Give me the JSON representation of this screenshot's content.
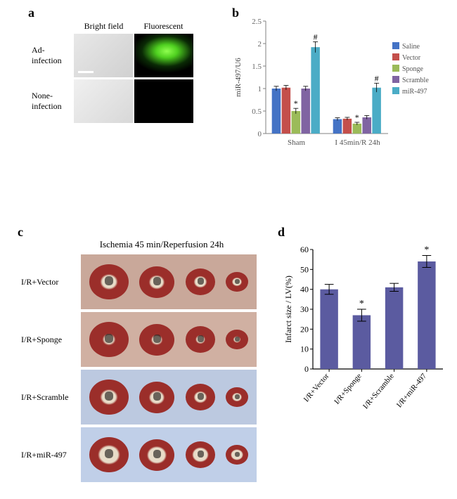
{
  "panelA": {
    "label": "a",
    "col1": "Bright field",
    "col2": "Fluorescent",
    "row1": "Ad-\ninfection",
    "row2": "None-\ninfection"
  },
  "panelB": {
    "label": "b",
    "ylabel": "miR-497/U6",
    "ylim": [
      0,
      2.5
    ],
    "yticks": [
      0,
      0.5,
      1.0,
      1.5,
      2.0,
      2.5
    ],
    "groups": [
      "Sham",
      "I 45min/R 24h"
    ],
    "series": [
      {
        "name": "Saline",
        "color": "#4473c5",
        "values": [
          1.0,
          0.32
        ],
        "err": [
          0.05,
          0.03
        ],
        "sig": [
          "",
          ""
        ]
      },
      {
        "name": "Vector",
        "color": "#c44f4b",
        "values": [
          1.02,
          0.33
        ],
        "err": [
          0.05,
          0.03
        ],
        "sig": [
          "",
          ""
        ]
      },
      {
        "name": "Sponge",
        "color": "#9bbb59",
        "values": [
          0.5,
          0.22
        ],
        "err": [
          0.06,
          0.03
        ],
        "sig": [
          "*",
          "*"
        ]
      },
      {
        "name": "Scramble",
        "color": "#8064a2",
        "values": [
          1.0,
          0.36
        ],
        "err": [
          0.05,
          0.04
        ],
        "sig": [
          "",
          ""
        ]
      },
      {
        "name": "miR-497",
        "color": "#4bacc6",
        "values": [
          1.92,
          1.02
        ],
        "err": [
          0.12,
          0.1
        ],
        "sig": [
          "#",
          "#"
        ]
      }
    ],
    "axis_color": "#808080",
    "font_size": 11
  },
  "panelC": {
    "label": "c",
    "title": "Ischemia 45 min/Reperfusion 24h",
    "rows": [
      {
        "label": "I/R+Vector",
        "bg": "#c9a89a",
        "infarct": 0.4
      },
      {
        "label": "I/R+Sponge",
        "bg": "#d0b0a2",
        "infarct": 0.27
      },
      {
        "label": "I/R+Scramble",
        "bg": "#bcc9e0",
        "infarct": 0.4
      },
      {
        "label": "I/R+miR-497",
        "bg": "#c0cfe8",
        "infarct": 0.54
      }
    ],
    "heart_sizes": [
      56,
      50,
      42,
      32
    ],
    "red": "#9b2e2a",
    "pale": "#e8dcc8"
  },
  "panelD": {
    "label": "d",
    "ylabel": "Infarct size / LV(%)",
    "ylim": [
      0,
      60
    ],
    "yticks": [
      0,
      10,
      20,
      30,
      40,
      50,
      60
    ],
    "categories": [
      "I/R+Vector",
      "I/R+Sponge",
      "I/R+Scramble",
      "I/R+miR-497"
    ],
    "values": [
      40,
      27,
      41,
      54
    ],
    "errors": [
      2.5,
      3.0,
      2.0,
      3.0
    ],
    "sig": [
      "",
      "*",
      "",
      "*"
    ],
    "bar_color": "#5b5ba0",
    "axis_color": "#000",
    "font_size": 12
  }
}
